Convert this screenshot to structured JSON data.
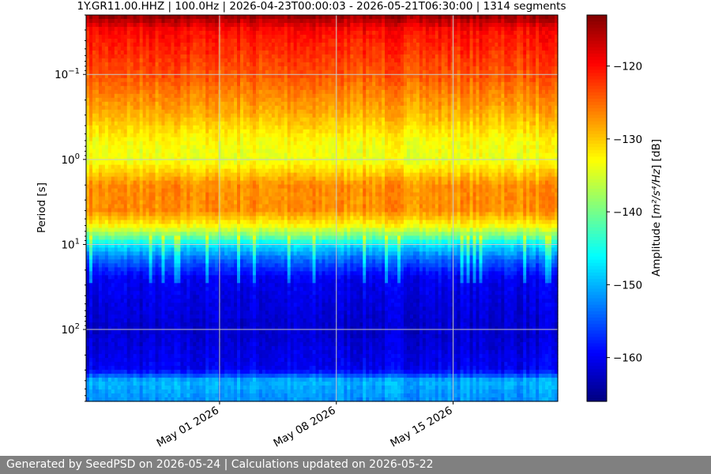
{
  "footer": {
    "text": "Generated by SeedPSD on 2026-05-24 | Calculations updated on 2026-05-22"
  },
  "colors": {
    "colormap": "jet",
    "footer_bg": "#808080",
    "grid": "#c8c8c8"
  },
  "chart_data": {
    "type": "heatmap",
    "title": "1Y.GR11.00.HHZ | 100.0Hz | 2026-04-23T00:00:03 - 2026-05-21T06:30:00 | 1314 segments",
    "xlabel": "",
    "ylabel": "Period [s]",
    "x_axis": {
      "kind": "date",
      "range": [
        "2026-04-23T00:00:03",
        "2026-05-21T06:30:00"
      ],
      "ticks": [
        {
          "date": "2026-05-01",
          "label": "May 01 2026"
        },
        {
          "date": "2026-05-08",
          "label": "May 08 2026"
        },
        {
          "date": "2026-05-15",
          "label": "May 15 2026"
        }
      ]
    },
    "y_axis": {
      "scale": "log",
      "inverted": true,
      "range": [
        0.02,
        700
      ],
      "ticks": [
        {
          "value": 0.1,
          "base": "10",
          "exp": "−1"
        },
        {
          "value": 1,
          "base": "10",
          "exp": "0"
        },
        {
          "value": 10,
          "base": "10",
          "exp": "1"
        },
        {
          "value": 100,
          "base": "10",
          "exp": "2"
        }
      ]
    },
    "grid": true,
    "colorbar": {
      "label_prefix": "Amplitude [",
      "label_math": "m²/s⁴/Hz",
      "label_suffix": "] [dB]",
      "range": [
        -166,
        -113
      ],
      "ticks": [
        {
          "value": -120,
          "label": "−120"
        },
        {
          "value": -130,
          "label": "−130"
        },
        {
          "value": -140,
          "label": "−140"
        },
        {
          "value": -150,
          "label": "−150"
        },
        {
          "value": -160,
          "label": "−160"
        }
      ]
    },
    "period_profile_db": [
      {
        "period": 0.02,
        "db": -114
      },
      {
        "period": 0.03,
        "db": -120
      },
      {
        "period": 0.1,
        "db": -124
      },
      {
        "period": 0.3,
        "db": -129
      },
      {
        "period": 0.6,
        "db": -133
      },
      {
        "period": 1,
        "db": -134
      },
      {
        "period": 2,
        "db": -127
      },
      {
        "period": 4,
        "db": -127
      },
      {
        "period": 6,
        "db": -133
      },
      {
        "period": 8,
        "db": -140
      },
      {
        "period": 10,
        "db": -147
      },
      {
        "period": 15,
        "db": -154
      },
      {
        "period": 25,
        "db": -160
      },
      {
        "period": 100,
        "db": -162
      },
      {
        "period": 300,
        "db": -160
      },
      {
        "period": 400,
        "db": -150
      },
      {
        "period": 700,
        "db": -152
      }
    ],
    "microseism_peaks": [
      {
        "date": "2026-04-30T06:00:00",
        "db": -123
      },
      {
        "date": "2026-05-01T12:00:00",
        "db": -120
      },
      {
        "date": "2026-05-02T12:00:00",
        "db": -119
      },
      {
        "date": "2026-05-03T12:00:00",
        "db": -120
      },
      {
        "date": "2026-05-05T12:00:00",
        "db": -122
      },
      {
        "date": "2026-05-07T00:00:00",
        "db": -123
      },
      {
        "date": "2026-05-08T00:00:00",
        "db": -122
      },
      {
        "date": "2026-05-14T00:00:00",
        "db": -123
      },
      {
        "date": "2026-05-15T00:00:00",
        "db": -122
      },
      {
        "date": "2026-05-16T12:00:00",
        "db": -121
      },
      {
        "date": "2026-05-17T12:00:00",
        "db": -122
      }
    ]
  }
}
